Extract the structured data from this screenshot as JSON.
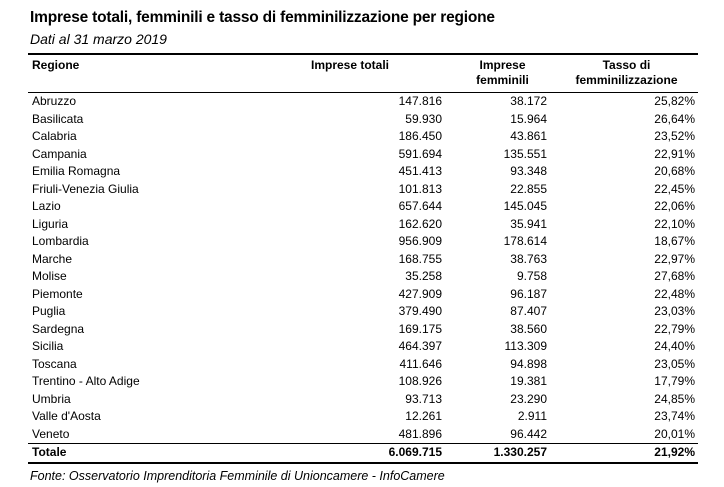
{
  "title": "Imprese totali, femminili e tasso di femminilizzazione per regione",
  "subtitle": "Dati al 31 marzo 2019",
  "source": "Fonte: Osservatorio Imprenditoria Femminile di Unioncamere - InfoCamere",
  "colors": {
    "text": "#000000",
    "background": "#ffffff",
    "rule": "#000000"
  },
  "table": {
    "columns": [
      "Regione",
      "Imprese totali",
      "Imprese femminili",
      "Tasso di femminilizzazione"
    ],
    "rows": [
      [
        "Abruzzo",
        "147.816",
        "38.172",
        "25,82%"
      ],
      [
        "Basilicata",
        "59.930",
        "15.964",
        "26,64%"
      ],
      [
        "Calabria",
        "186.450",
        "43.861",
        "23,52%"
      ],
      [
        "Campania",
        "591.694",
        "135.551",
        "22,91%"
      ],
      [
        "Emilia Romagna",
        "451.413",
        "93.348",
        "20,68%"
      ],
      [
        "Friuli-Venezia Giulia",
        "101.813",
        "22.855",
        "22,45%"
      ],
      [
        "Lazio",
        "657.644",
        "145.045",
        "22,06%"
      ],
      [
        "Liguria",
        "162.620",
        "35.941",
        "22,10%"
      ],
      [
        "Lombardia",
        "956.909",
        "178.614",
        "18,67%"
      ],
      [
        "Marche",
        "168.755",
        "38.763",
        "22,97%"
      ],
      [
        "Molise",
        "35.258",
        "9.758",
        "27,68%"
      ],
      [
        "Piemonte",
        "427.909",
        "96.187",
        "22,48%"
      ],
      [
        "Puglia",
        "379.490",
        "87.407",
        "23,03%"
      ],
      [
        "Sardegna",
        "169.175",
        "38.560",
        "22,79%"
      ],
      [
        "Sicilia",
        "464.397",
        "113.309",
        "24,40%"
      ],
      [
        "Toscana",
        "411.646",
        "94.898",
        "23,05%"
      ],
      [
        "Trentino - Alto Adige",
        "108.926",
        "19.381",
        "17,79%"
      ],
      [
        "Umbria",
        "93.713",
        "23.290",
        "24,85%"
      ],
      [
        "Valle d'Aosta",
        "12.261",
        "2.911",
        "23,74%"
      ],
      [
        "Veneto",
        "481.896",
        "96.442",
        "20,01%"
      ]
    ],
    "total": [
      "Totale",
      "6.069.715",
      "1.330.257",
      "21,92%"
    ]
  }
}
